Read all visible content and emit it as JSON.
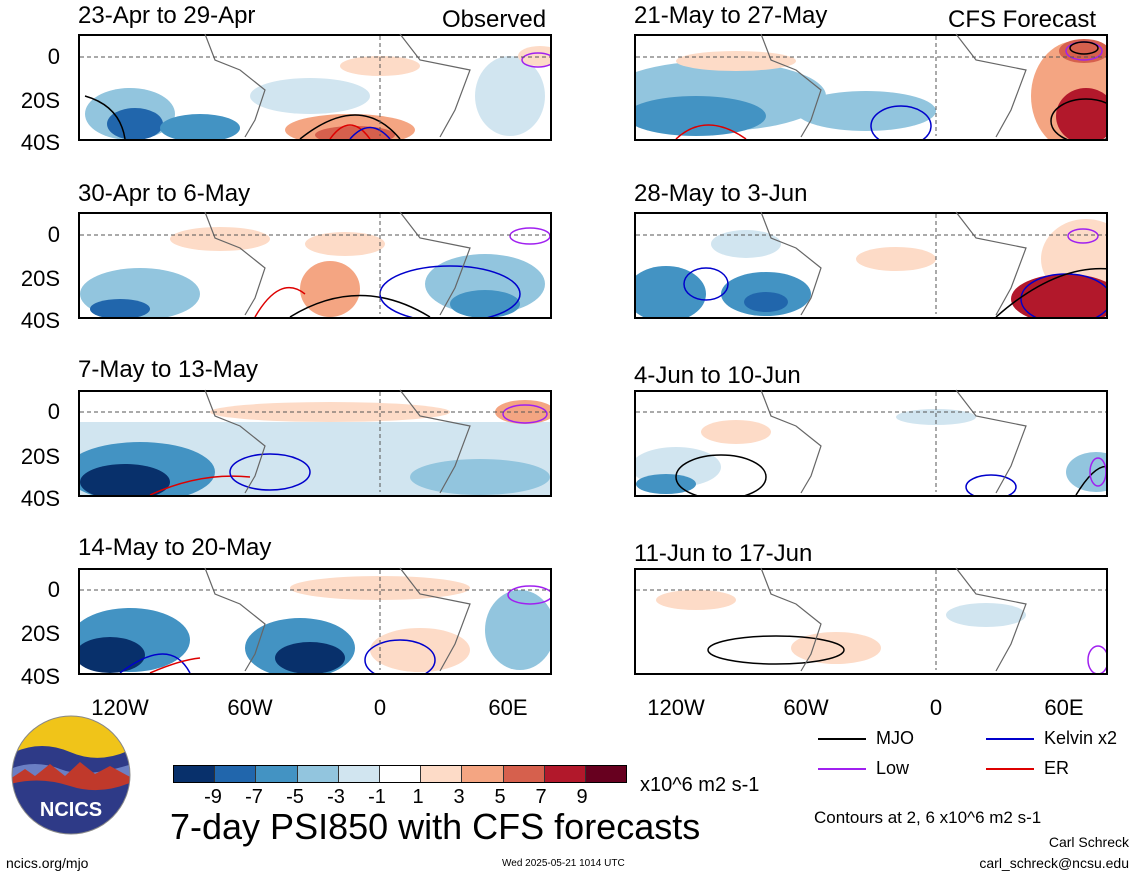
{
  "header": {
    "left_tag": "Observed",
    "right_tag": "CFS Forecast"
  },
  "axis": {
    "y_ticks": [
      "0",
      "20S",
      "40S"
    ],
    "x_ticks": [
      "120W",
      "60W",
      "0",
      "60E"
    ]
  },
  "left_panels": [
    {
      "title": "23-Apr to 29-Apr"
    },
    {
      "title": "30-Apr to 6-May"
    },
    {
      "title": "7-May to 13-May"
    },
    {
      "title": "14-May to 20-May"
    }
  ],
  "right_panels": [
    {
      "title": "21-May to 27-May"
    },
    {
      "title": "28-May to 3-Jun"
    },
    {
      "title": "4-Jun to 10-Jun"
    },
    {
      "title": "11-Jun to 17-Jun"
    }
  ],
  "colorbar": {
    "tick_labels": [
      "-9",
      "-7",
      "-5",
      "-3",
      "-1",
      "1",
      "3",
      "5",
      "7",
      "9"
    ],
    "units": "x10^6 m2 s-1",
    "colors": [
      "#08306b",
      "#2166ac",
      "#4393c3",
      "#92c5de",
      "#d1e5f0",
      "#ffffff",
      "#fddbc7",
      "#f4a582",
      "#d6604d",
      "#b2182b",
      "#67001f"
    ]
  },
  "legend": {
    "items": [
      {
        "label": "MJO",
        "color": "#000000"
      },
      {
        "label": "Kelvin x2",
        "color": "#0000cc"
      },
      {
        "label": "Low",
        "color": "#a020f0"
      },
      {
        "label": "ER",
        "color": "#dd0000"
      }
    ],
    "contours_note": "Contours at 2, 6 x10^6 m2 s-1"
  },
  "footer": {
    "main_title": "7-day PSI850 with CFS forecasts",
    "logo_text": "NCICS",
    "url": "ncics.org/mjo",
    "timestamp": "Wed 2025-05-21 1014 UTC",
    "author": "Carl Schreck",
    "email": "carl_schreck@ncsu.edu"
  },
  "chart_data": {
    "type": "heatmap",
    "title": "7-day PSI850 with CFS forecasts",
    "variable": "PSI850",
    "units": "x10^6 m2 s-1",
    "x_ticks": [
      "120W",
      "60W",
      "0",
      "60E"
    ],
    "y_ticks": [
      "0",
      "20S",
      "40S"
    ],
    "xlim": [
      "150W",
      "80E"
    ],
    "ylim": [
      "40S",
      "10N"
    ],
    "color_levels": [
      -9,
      -7,
      -5,
      -3,
      -1,
      1,
      3,
      5,
      7,
      9
    ],
    "contour_levels": [
      2,
      6
    ],
    "contour_series": [
      "MJO",
      "Kelvin x2",
      "Low",
      "ER"
    ],
    "panels": [
      {
        "period": "23-Apr to 29-Apr",
        "source": "Observed"
      },
      {
        "period": "30-Apr to 6-May",
        "source": "Observed"
      },
      {
        "period": "7-May to 13-May",
        "source": "Observed"
      },
      {
        "period": "14-May to 20-May",
        "source": "Observed"
      },
      {
        "period": "21-May to 27-May",
        "source": "CFS Forecast"
      },
      {
        "period": "28-May to 3-Jun",
        "source": "CFS Forecast"
      },
      {
        "period": "4-Jun to 10-Jun",
        "source": "CFS Forecast"
      },
      {
        "period": "11-Jun to 17-Jun",
        "source": "CFS Forecast"
      }
    ]
  }
}
